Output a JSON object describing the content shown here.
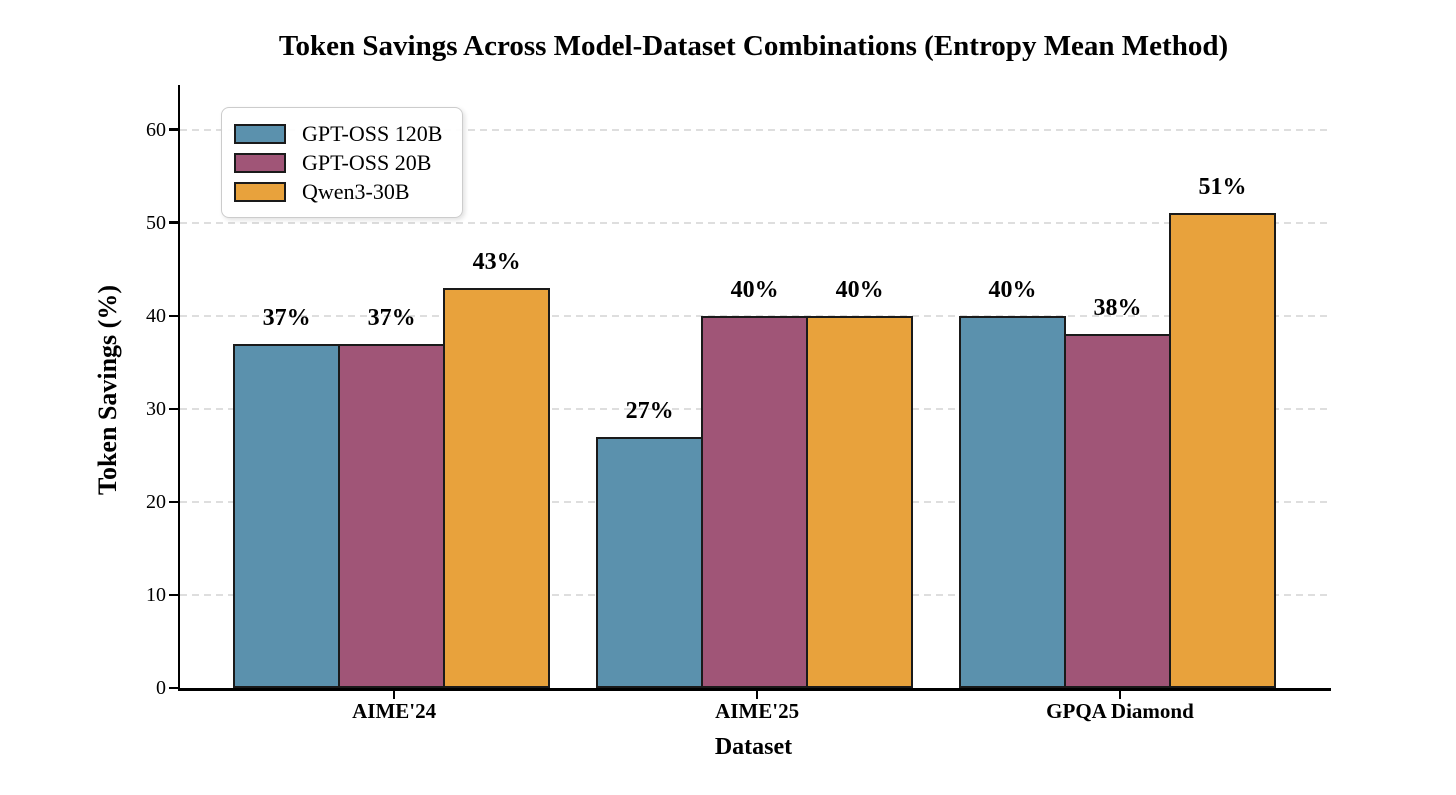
{
  "chart_data": {
    "type": "bar",
    "title": "Token Savings Across Model-Dataset Combinations (Entropy Mean Method)",
    "xlabel": "Dataset",
    "ylabel": "Token Savings (%)",
    "categories": [
      "AIME'24",
      "AIME'25",
      "GPQA Diamond"
    ],
    "series": [
      {
        "name": "GPT-OSS 120B",
        "color": "#5B91AD",
        "values": [
          37,
          27,
          40
        ],
        "value_labels": [
          "37%",
          "27%",
          "40%"
        ]
      },
      {
        "name": "GPT-OSS 20B",
        "color": "#A05577",
        "values": [
          37,
          40,
          38
        ],
        "value_labels": [
          "37%",
          "40%",
          "38%"
        ]
      },
      {
        "name": "Qwen3-30B",
        "color": "#E8A23C",
        "values": [
          43,
          40,
          51
        ],
        "value_labels": [
          "43%",
          "40%",
          "51%"
        ]
      }
    ],
    "y_ticks": [
      0,
      10,
      20,
      30,
      40,
      50,
      60
    ],
    "ylim": [
      0,
      64.8
    ],
    "grid": "horizontal-dashed",
    "legend_position": "upper-left",
    "bar_edge_color": "#1a1a1a",
    "axis_color": "#000000",
    "gridline_color": "#dedede",
    "background_color": "#ffffff"
  }
}
